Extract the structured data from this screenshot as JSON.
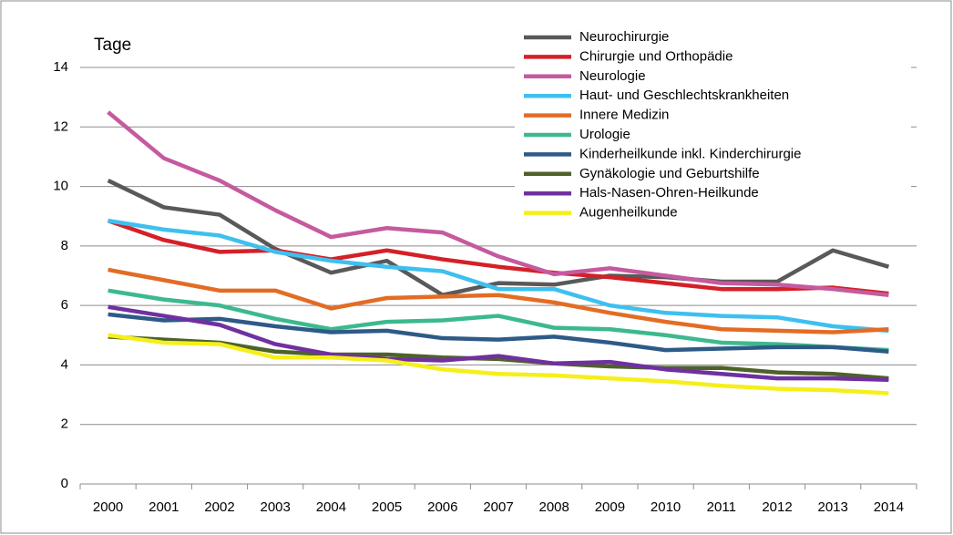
{
  "chart_data": {
    "type": "line",
    "y_label": "Tage",
    "categories": [
      "2000",
      "2001",
      "2002",
      "2003",
      "2004",
      "2005",
      "2006",
      "2007",
      "2008",
      "2009",
      "2010",
      "2011",
      "2012",
      "2013",
      "2014"
    ],
    "ylim": [
      0,
      14
    ],
    "yticks": [
      0,
      2,
      4,
      6,
      8,
      10,
      12,
      14
    ],
    "grid": true,
    "legend": "top-right",
    "series": [
      {
        "name": "Neurochirurgie",
        "color": "#595959",
        "values": [
          10.2,
          9.3,
          9.05,
          7.9,
          7.1,
          7.5,
          6.35,
          6.75,
          6.7,
          7.0,
          6.95,
          6.8,
          6.8,
          7.85,
          7.3
        ]
      },
      {
        "name": "Chirurgie und Orthopädie",
        "color": "#d42027",
        "values": [
          8.85,
          8.2,
          7.8,
          7.85,
          7.55,
          7.85,
          7.55,
          7.3,
          7.1,
          6.95,
          6.75,
          6.55,
          6.55,
          6.6,
          6.4
        ]
      },
      {
        "name": "Neurologie",
        "color": "#c55a9f",
        "values": [
          12.5,
          10.95,
          10.2,
          9.2,
          8.3,
          8.6,
          8.45,
          7.65,
          7.05,
          7.25,
          7.0,
          6.75,
          6.7,
          6.55,
          6.35
        ]
      },
      {
        "name": "Haut- und Geschlechtskrankheiten",
        "color": "#3ec0ef",
        "values": [
          8.85,
          8.55,
          8.35,
          7.8,
          7.5,
          7.3,
          7.15,
          6.55,
          6.55,
          6.0,
          5.75,
          5.65,
          5.6,
          5.3,
          5.15
        ]
      },
      {
        "name": "Innere Medizin",
        "color": "#e36c25",
        "values": [
          7.2,
          6.85,
          6.5,
          6.5,
          5.9,
          6.25,
          6.3,
          6.35,
          6.1,
          5.75,
          5.45,
          5.2,
          5.15,
          5.1,
          5.2
        ]
      },
      {
        "name": "Urologie",
        "color": "#3cb98e",
        "values": [
          6.5,
          6.2,
          6.0,
          5.55,
          5.2,
          5.45,
          5.5,
          5.65,
          5.25,
          5.2,
          5.0,
          4.75,
          4.7,
          4.6,
          4.5
        ]
      },
      {
        "name": "Kinderheilkunde inkl. Kinderchirurgie",
        "color": "#2e5a87",
        "values": [
          5.7,
          5.5,
          5.55,
          5.3,
          5.1,
          5.15,
          4.9,
          4.85,
          4.95,
          4.75,
          4.5,
          4.55,
          4.6,
          4.6,
          4.45
        ]
      },
      {
        "name": "Gynäkologie und Geburtshilfe",
        "color": "#4e6228",
        "values": [
          4.95,
          4.85,
          4.75,
          4.45,
          4.35,
          4.35,
          4.25,
          4.2,
          4.05,
          3.95,
          3.9,
          3.9,
          3.75,
          3.7,
          3.55
        ]
      },
      {
        "name": "Hals-Nasen-Ohren-Heilkunde",
        "color": "#7030a0",
        "values": [
          5.95,
          5.65,
          5.35,
          4.7,
          4.35,
          4.2,
          4.15,
          4.3,
          4.05,
          4.1,
          3.85,
          3.7,
          3.55,
          3.55,
          3.5
        ]
      },
      {
        "name": "Augenheilkunde",
        "color": "#f5ef1a",
        "values": [
          5.0,
          4.75,
          4.7,
          4.25,
          4.25,
          4.15,
          3.85,
          3.7,
          3.65,
          3.55,
          3.45,
          3.3,
          3.2,
          3.15,
          3.05
        ]
      }
    ]
  }
}
